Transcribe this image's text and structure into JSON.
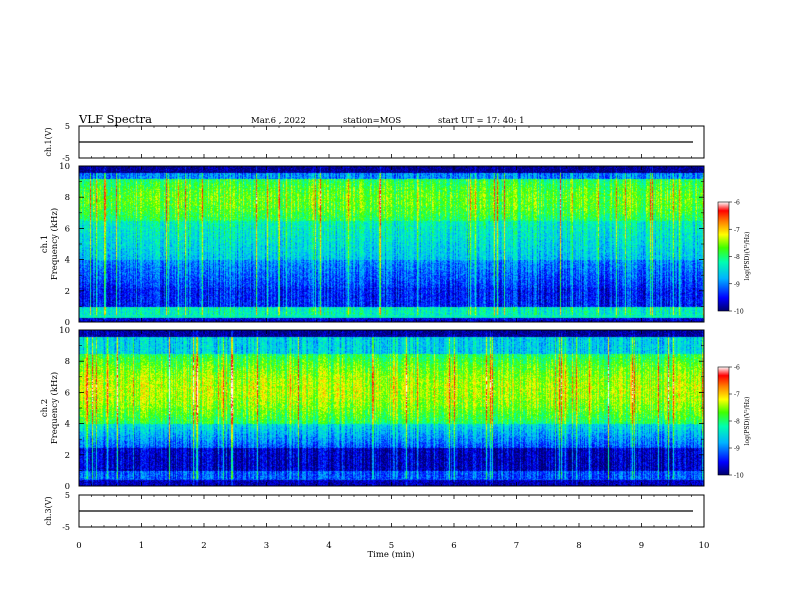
{
  "header": {
    "title": "VLF Spectra",
    "date": "Mar.6 , 2022",
    "station": "station=MOS",
    "start": "start UT = 17: 40: 1"
  },
  "chart_data": [
    {
      "type": "line",
      "panel": "ch1-waveform",
      "ylabel": "ch.1(V)",
      "ylim": [
        -5,
        5
      ],
      "yticks": [
        "5",
        "-5"
      ],
      "xlim": [
        0,
        10
      ],
      "trace_level": 0
    },
    {
      "type": "heatmap",
      "panel": "ch1-spectrogram",
      "ylabel": "ch.1\nFrequency (kHz)",
      "ylim": [
        0,
        10
      ],
      "yticks": [
        "0",
        "2",
        "4",
        "6",
        "8",
        "10"
      ],
      "xlim": [
        0,
        10
      ],
      "colorbar": {
        "label": "log(PSD)(V²/Hz)",
        "range": [
          -10,
          -6
        ],
        "ticks": [
          "-6",
          "-7",
          "-8",
          "-9",
          "-10"
        ]
      }
    },
    {
      "type": "heatmap",
      "panel": "ch2-spectrogram",
      "ylabel": "ch.2\nFrequency (kHz)",
      "ylim": [
        0,
        10
      ],
      "yticks": [
        "0",
        "2",
        "4",
        "6",
        "8",
        "10"
      ],
      "xlim": [
        0,
        10
      ],
      "colorbar": {
        "label": "log(PSD)(V²/Hz)",
        "range": [
          -10,
          -6
        ],
        "ticks": [
          "-6",
          "-7",
          "-8",
          "-9",
          "-10"
        ]
      }
    },
    {
      "type": "line",
      "panel": "ch3-waveform",
      "ylabel": "ch.3(V)",
      "ylim": [
        -5,
        5
      ],
      "yticks": [
        "5",
        "-5"
      ],
      "xlim": [
        0,
        10
      ],
      "trace_level": 0
    }
  ],
  "xaxis": {
    "label": "Time (min)",
    "ticks": [
      "0",
      "1",
      "2",
      "3",
      "4",
      "5",
      "6",
      "7",
      "8",
      "9",
      "10"
    ]
  },
  "colors": {
    "background_dark": "#000020",
    "colormap": [
      "#00006a",
      "#0000ff",
      "#00b4ff",
      "#00ffb0",
      "#40ff00",
      "#ffff00",
      "#ff8000",
      "#ff0000",
      "#ffffff"
    ]
  }
}
